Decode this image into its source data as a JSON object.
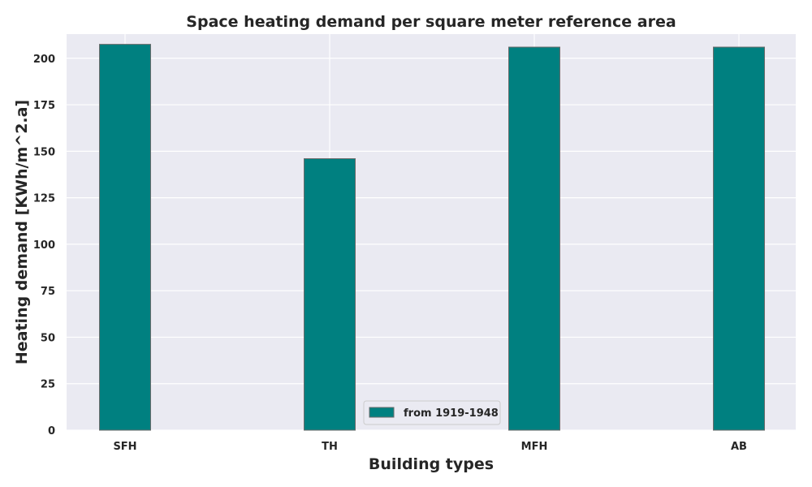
{
  "chart_data": {
    "type": "bar",
    "title": "Space heating demand per square meter reference area",
    "xlabel": "Building types",
    "ylabel": "Heating demand [KWh/m^2.a]",
    "categories": [
      "SFH",
      "TH",
      "MFH",
      "AB"
    ],
    "series": [
      {
        "name": "from 1919-1948",
        "values": [
          207.5,
          146,
          206,
          206
        ]
      }
    ],
    "ylim": [
      0,
      213
    ],
    "yticks": [
      0,
      25,
      50,
      75,
      100,
      125,
      150,
      175,
      200
    ],
    "grid": true,
    "legend_position": "bottom-center",
    "colors": {
      "bar": "#008080",
      "bar_edge": "#6b6b6b",
      "plot_background": "#eaeaf2",
      "grid": "#ffffff"
    }
  }
}
